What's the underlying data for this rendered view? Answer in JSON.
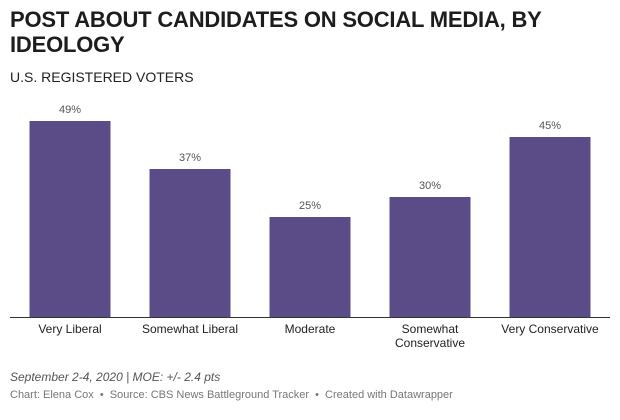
{
  "header": {
    "title": "POST ABOUT CANDIDATES ON SOCIAL MEDIA, BY IDEOLOGY",
    "subtitle": "U.S. REGISTERED VOTERS"
  },
  "chart_data": {
    "type": "bar",
    "title": "POST ABOUT CANDIDATES ON SOCIAL MEDIA, BY IDEOLOGY",
    "subtitle": "U.S. REGISTERED VOTERS",
    "categories": [
      "Very Liberal",
      "Somewhat Liberal",
      "Moderate",
      "Somewhat Conservative",
      "Very Conservative"
    ],
    "category_lines": [
      [
        "Very Liberal"
      ],
      [
        "Somewhat Liberal"
      ],
      [
        "Moderate"
      ],
      [
        "Somewhat",
        "Conservative"
      ],
      [
        "Very Conservative"
      ]
    ],
    "values": [
      49,
      37,
      25,
      30,
      45
    ],
    "value_labels": [
      "49%",
      "37%",
      "25%",
      "30%",
      "45%"
    ],
    "unit": "%",
    "xlabel": "",
    "ylabel": "",
    "ylim": [
      0,
      49
    ],
    "grid": false,
    "legend": "none",
    "bar_color": "#5b4c88"
  },
  "notes": {
    "date_moe": "September 2-4, 2020 | MOE: +/- 2.4 pts"
  },
  "footer": {
    "chart_by": "Chart: Elena Cox",
    "source": "Source: CBS News Battleground Tracker",
    "created_with": "Created with Datawrapper",
    "separator": "•"
  }
}
